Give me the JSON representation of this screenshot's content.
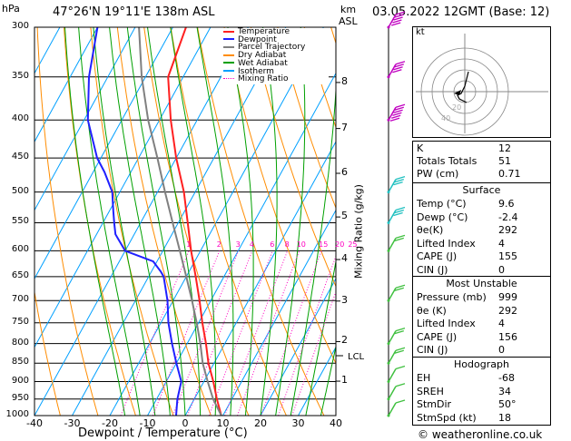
{
  "header": {
    "pressure_unit": "hPa",
    "location": "47°26'N  19°11'E  138m  ASL",
    "height_unit_km": "km",
    "height_unit_asl": "ASL",
    "datetime": "03.05.2022  12GMT  (Base: 12)"
  },
  "credit": "© weatheronline.co.uk",
  "hodograph": {
    "label": "kt",
    "ring_labels": [
      "20",
      "40"
    ]
  },
  "colors": {
    "temperature": "#ff2020",
    "dewpoint": "#2020ff",
    "parcel": "#808080",
    "dry_adiabat": "#ff8c00",
    "wet_adiabat": "#00a000",
    "isotherm": "#00a0ff",
    "mixing_ratio": "#ff00c0",
    "wind_barb": "#c000c0",
    "wind_barb_low": "#20c0c0",
    "wind_barb_near_surface": "#40c040"
  },
  "chart_data": {
    "type": "line",
    "xlabel": "Dewpoint / Temperature (°C)",
    "ylabel": "Mixing Ratio (g/kg)",
    "xlim": [
      -40,
      40
    ],
    "ylim": [
      1000,
      300
    ],
    "x_ticks": [
      "-40",
      "-30",
      "-20",
      "-10",
      "0",
      "10",
      "20",
      "30",
      "40"
    ],
    "pressure_ticks": [
      "300",
      "350",
      "400",
      "450",
      "500",
      "550",
      "600",
      "650",
      "700",
      "750",
      "800",
      "850",
      "900",
      "950",
      "1000"
    ],
    "height_ticks_km": [
      "8",
      "7",
      "6",
      "5",
      "4",
      "3",
      "2",
      "1"
    ],
    "lcl_label": "LCL",
    "mixing_ratio_labels": [
      "1",
      "2",
      "3",
      "4",
      "6",
      "8",
      "10",
      "15",
      "20",
      "25"
    ],
    "legend": [
      "Temperature",
      "Dewpoint",
      "Parcel Trajectory",
      "Dry Adiabat",
      "Wet Adiabat",
      "Isotherm",
      "Mixing Ratio"
    ],
    "legend_position": "top-left",
    "series": [
      {
        "name": "Temperature",
        "pressure": [
          1000,
          950,
          900,
          850,
          800,
          750,
          700,
          650,
          600,
          550,
          500,
          450,
          400,
          350,
          300
        ],
        "values": [
          9.6,
          6.0,
          2.5,
          -1.5,
          -5.0,
          -9.0,
          -13.0,
          -17.5,
          -22.5,
          -27.5,
          -33.0,
          -40.0,
          -47.0,
          -54.0,
          -56.5
        ]
      },
      {
        "name": "Dewpoint",
        "pressure": [
          1000,
          950,
          900,
          850,
          800,
          750,
          700,
          650,
          640,
          620,
          600,
          570,
          550,
          530,
          520,
          500,
          470,
          450,
          400,
          350,
          300
        ],
        "values": [
          -2.4,
          -4.5,
          -6.0,
          -10.0,
          -14.0,
          -18.0,
          -21.5,
          -26.0,
          -27.5,
          -31.0,
          -40.0,
          -45.0,
          -47.0,
          -49.0,
          -50.0,
          -52.0,
          -57.0,
          -61.0,
          -69.0,
          -75.0,
          -80.0
        ]
      },
      {
        "name": "Parcel Trajectory",
        "pressure": [
          1000,
          950,
          900,
          850,
          800,
          750,
          700,
          650,
          600,
          550,
          500,
          450,
          400,
          350,
          300
        ],
        "values": [
          9.6,
          5.0,
          1.0,
          -3.0,
          -6.5,
          -10.5,
          -15.0,
          -20.0,
          -25.5,
          -31.5,
          -38.0,
          -45.0,
          -53.0,
          -61.0,
          -69.0
        ]
      }
    ]
  },
  "indices": {
    "K": "12",
    "Totals Totals": "51",
    "PW (cm)": "0.71"
  },
  "surface": {
    "title": "Surface",
    "rows": [
      [
        "Temp (°C)",
        "9.6"
      ],
      [
        "Dewp (°C)",
        "-2.4"
      ],
      [
        "θe(K)",
        "292"
      ],
      [
        "Lifted Index",
        "4"
      ],
      [
        "CAPE (J)",
        "155"
      ],
      [
        "CIN (J)",
        "0"
      ]
    ]
  },
  "most_unstable": {
    "title": "Most Unstable",
    "rows": [
      [
        "Pressure (mb)",
        "999"
      ],
      [
        "θe (K)",
        "292"
      ],
      [
        "Lifted Index",
        "4"
      ],
      [
        "CAPE (J)",
        "156"
      ],
      [
        "CIN (J)",
        "0"
      ]
    ]
  },
  "hodograph_indices": {
    "title": "Hodograph",
    "rows": [
      [
        "EH",
        "-68"
      ],
      [
        "SREH",
        "34"
      ],
      [
        "StmDir",
        "50°"
      ],
      [
        "StmSpd (kt)",
        "18"
      ]
    ]
  }
}
